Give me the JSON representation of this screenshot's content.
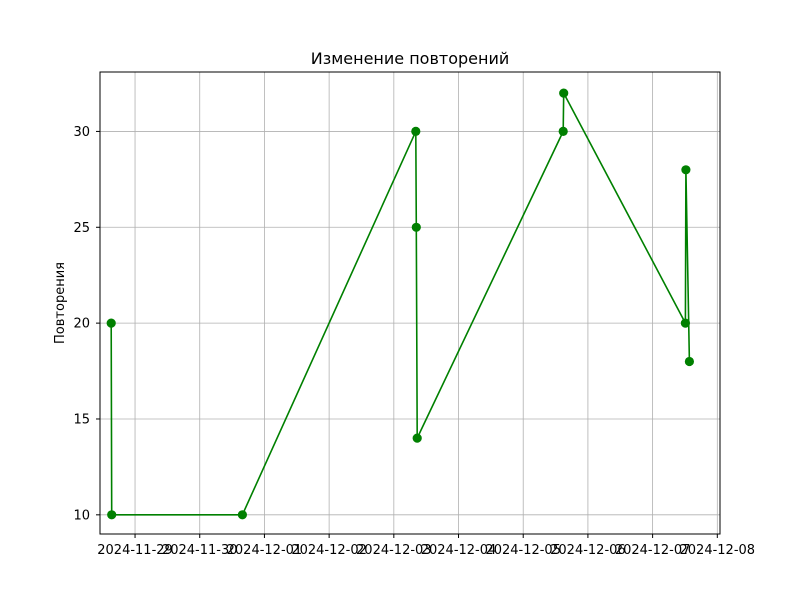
{
  "chart_data": {
    "type": "line",
    "title": "Изменение повторений",
    "xlabel": "",
    "ylabel": "Повторения",
    "x_ticks": [
      "2024-11-29",
      "2024-11-30",
      "2024-12-01",
      "2024-12-02",
      "2024-12-03",
      "2024-12-04",
      "2024-12-05",
      "2024-12-06",
      "2024-12-07",
      "2024-12-08"
    ],
    "y_ticks": [
      10,
      15,
      20,
      25,
      30
    ],
    "xlim": [
      "2024-11-28T11:00",
      "2024-12-08T01:00"
    ],
    "ylim": [
      9,
      33.1
    ],
    "grid": true,
    "colors": {
      "series": "#008000",
      "grid": "#b0b0b0"
    },
    "series": [
      {
        "points": [
          {
            "x": "2024-11-28T15:10",
            "y": 20
          },
          {
            "x": "2024-11-28T15:20",
            "y": 10
          },
          {
            "x": "2024-11-30T15:50",
            "y": 10
          },
          {
            "x": "2024-12-03T08:10",
            "y": 30
          },
          {
            "x": "2024-12-03T08:20",
            "y": 25
          },
          {
            "x": "2024-12-03T08:40",
            "y": 14
          },
          {
            "x": "2024-12-05T14:50",
            "y": 30
          },
          {
            "x": "2024-12-05T15:00",
            "y": 32
          },
          {
            "x": "2024-12-07T12:10",
            "y": 20
          },
          {
            "x": "2024-12-07T12:20",
            "y": 28
          },
          {
            "x": "2024-12-07T13:40",
            "y": 18
          }
        ]
      }
    ]
  }
}
